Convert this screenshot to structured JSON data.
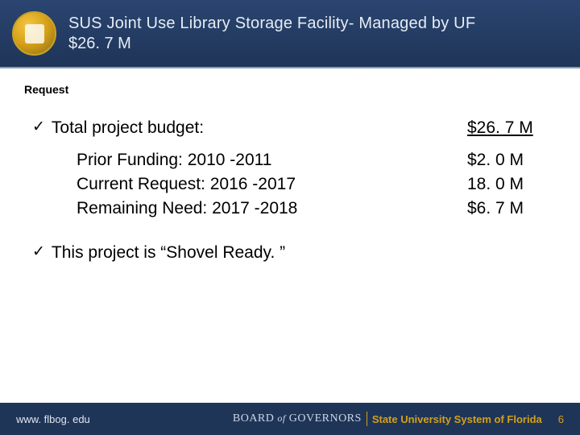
{
  "header": {
    "line1": "SUS Joint Use Library Storage Facility- Managed by UF",
    "line2": "$26. 7 M"
  },
  "request_label": "Request",
  "bullets": {
    "total": {
      "label": "Total project budget:",
      "value": "$26. 7 M"
    },
    "shovel": {
      "label": "This project is “Shovel Ready. ”"
    }
  },
  "sub": {
    "prior": {
      "label": "Prior Funding:  2010 -2011",
      "value": "$2. 0 M"
    },
    "current": {
      "label": "Current Request:  2016 -2017",
      "value": "18. 0 M"
    },
    "remaining": {
      "label": "Remaining Need:  2017 -2018",
      "value": "$6. 7 M"
    }
  },
  "footer": {
    "url": "www. flbog. edu",
    "board": "BOARD",
    "of": "of",
    "governors": "GOVERNORS",
    "sus": "State University System of Florida",
    "page": "6"
  },
  "colors": {
    "header_bg_top": "#2a4570",
    "header_bg_bottom": "#1f3558",
    "footer_bg": "#1f3558",
    "accent_gold": "#d4a017",
    "text_light": "#e6ecf5"
  }
}
